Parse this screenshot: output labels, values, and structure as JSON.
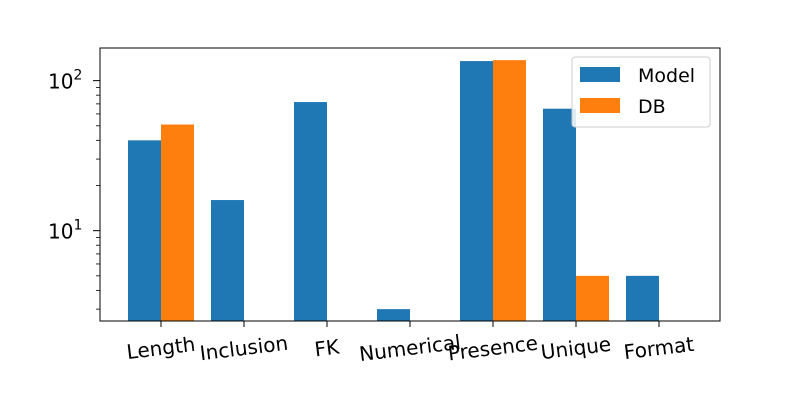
{
  "chart_data": {
    "type": "bar",
    "categories": [
      "Length",
      "Inclusion",
      "FK",
      "Numerical",
      "Presence",
      "Unique",
      "Format"
    ],
    "series": [
      {
        "name": "Model",
        "color": "#1f77b4",
        "values": [
          40,
          16,
          72,
          3,
          135,
          65,
          5
        ]
      },
      {
        "name": "DB",
        "color": "#ff7f0e",
        "values": [
          51,
          null,
          null,
          null,
          137,
          5,
          null
        ]
      }
    ],
    "yscale": "log",
    "ylim": [
      2.5,
      165
    ],
    "yticks": [
      {
        "value": 10,
        "base": "10",
        "exp": "1"
      },
      {
        "value": 100,
        "base": "10",
        "exp": "2"
      }
    ],
    "legend": "top-right",
    "grid": false
  }
}
